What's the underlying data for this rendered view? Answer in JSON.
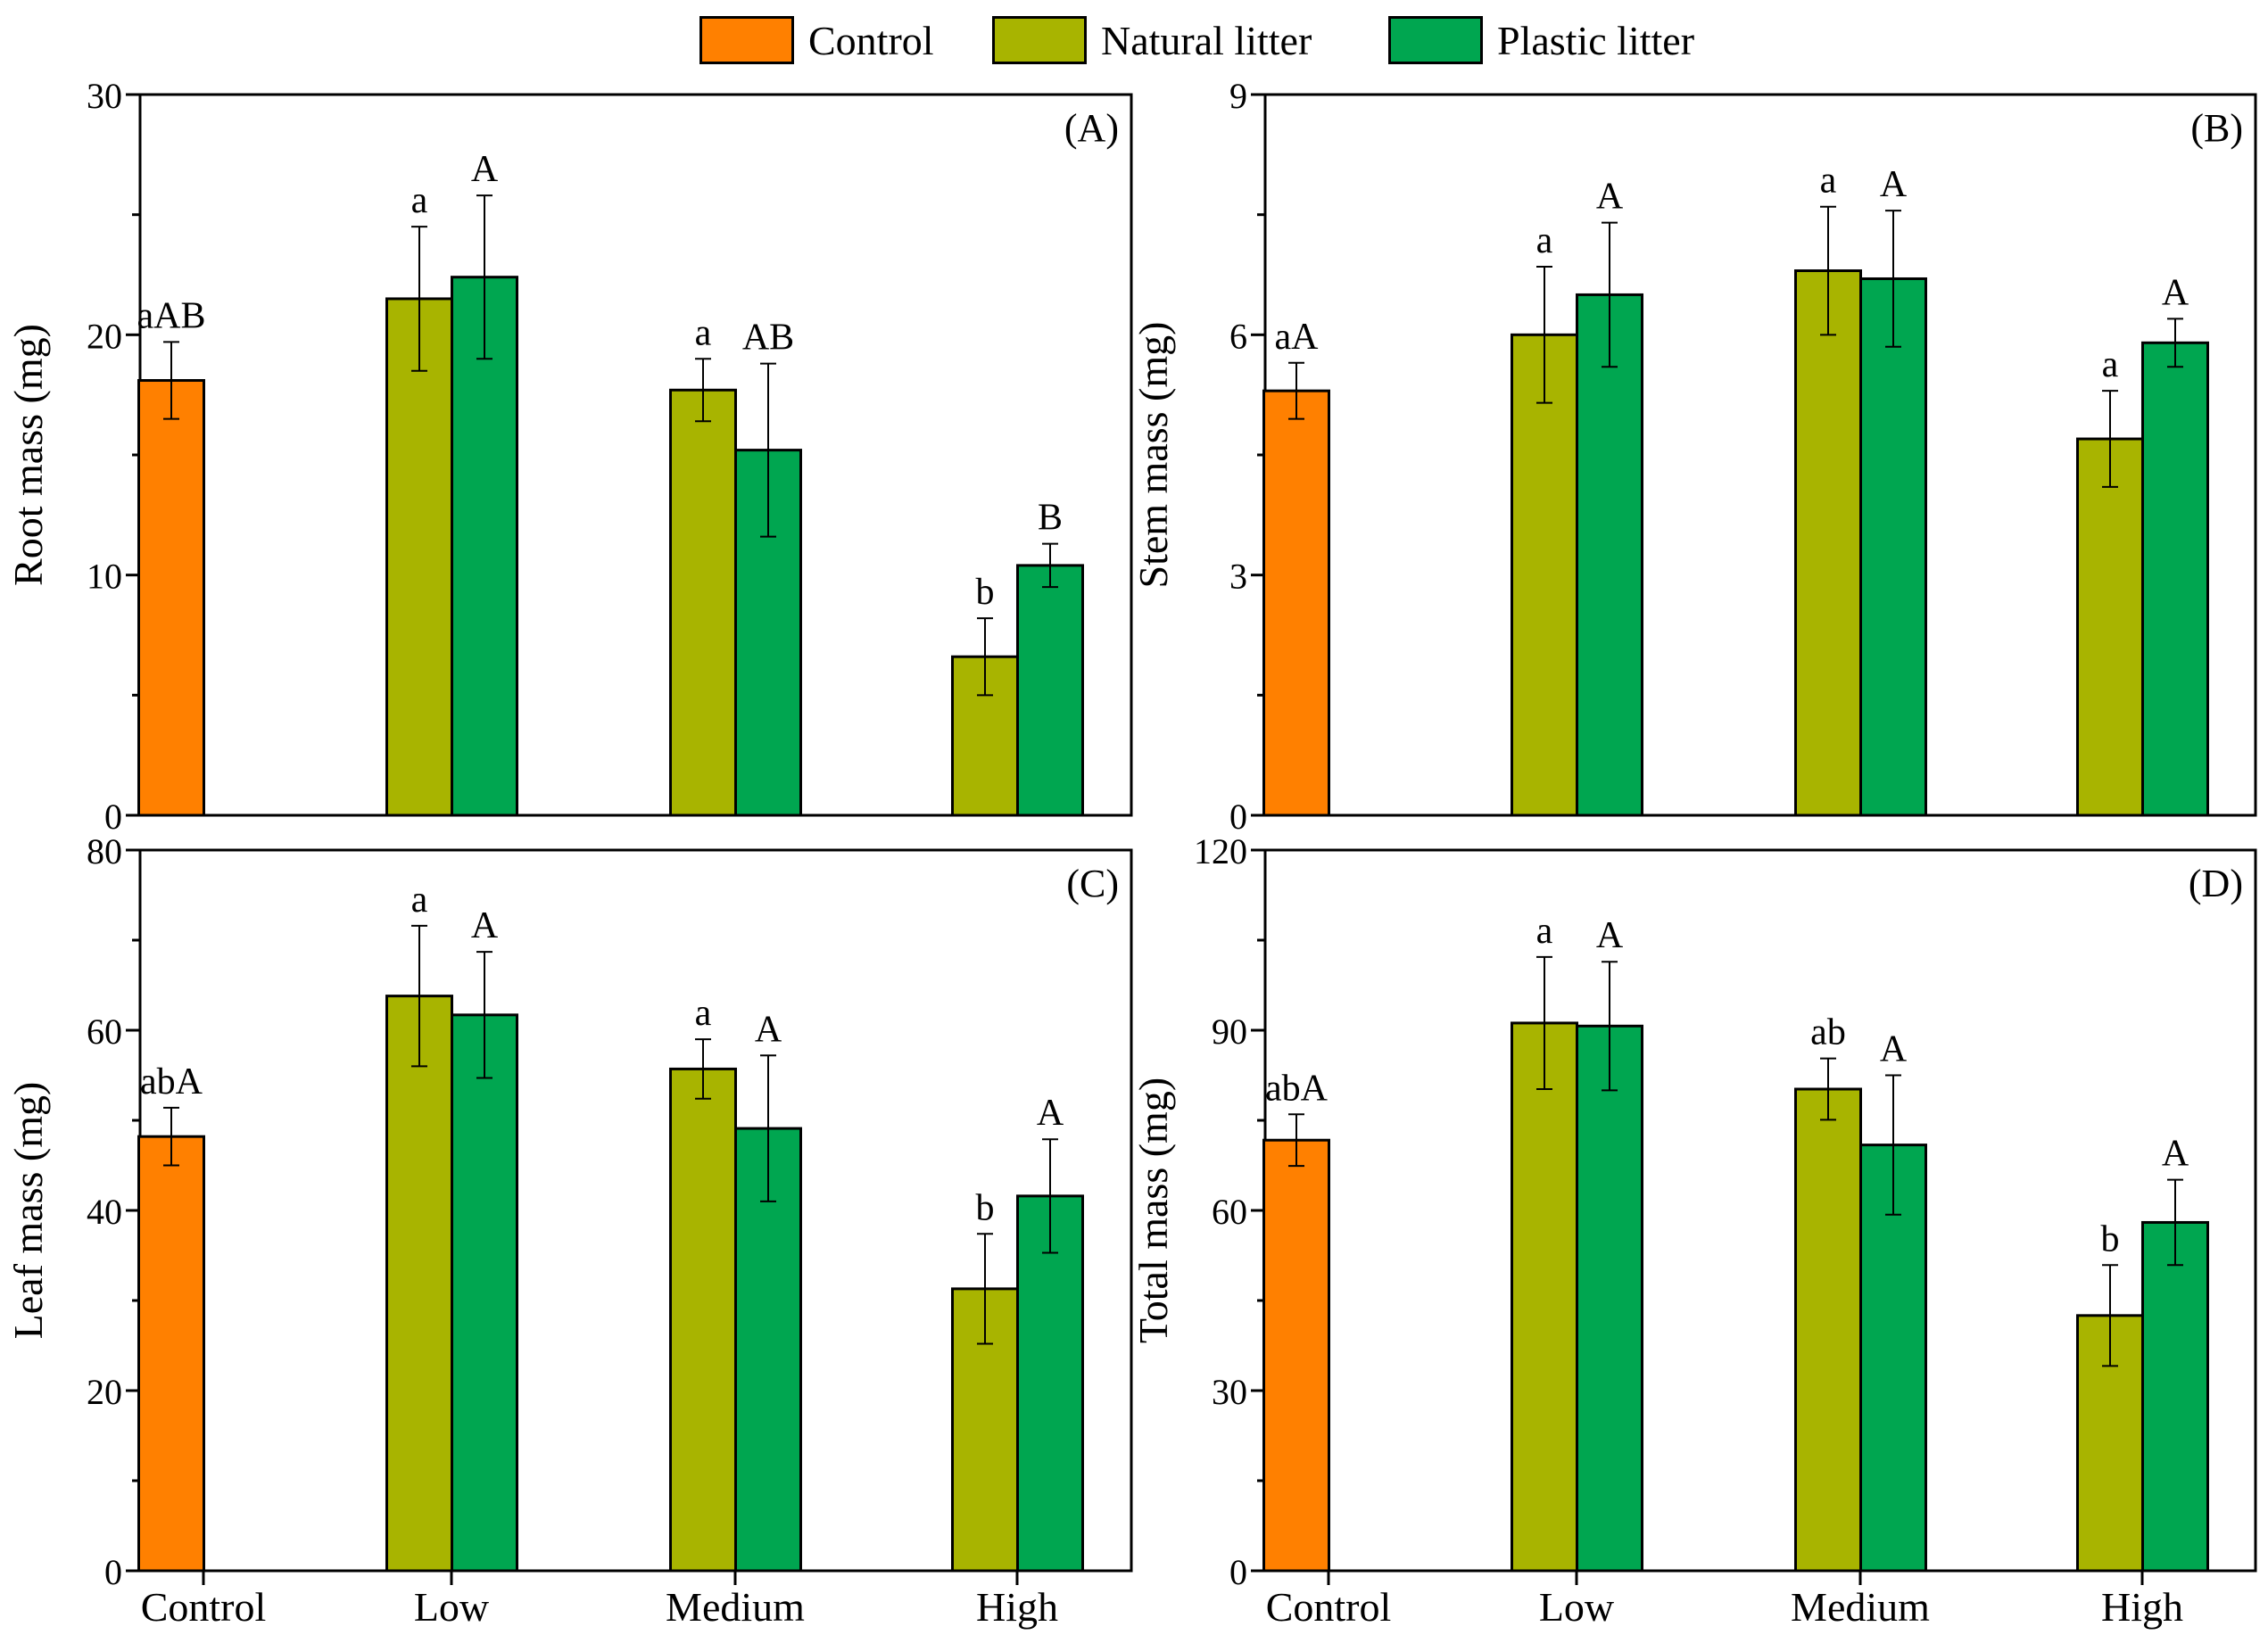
{
  "legend": {
    "items": [
      {
        "label": "Control",
        "color": "#FF8000"
      },
      {
        "label": "Natural litter",
        "color": "#A8B400"
      },
      {
        "label": "Plastic litter",
        "color": "#00A650"
      }
    ]
  },
  "chart_data": [
    {
      "type": "bar",
      "panel_label": "(A)",
      "ylabel": "Root mass (mg)",
      "ylim": [
        0,
        30
      ],
      "yticks": [
        "0",
        "10",
        "20",
        "30"
      ],
      "categories": [
        "Control",
        "Low",
        "Medium",
        "High"
      ],
      "series": [
        {
          "name": "Control",
          "values": [
            18.1,
            null,
            null,
            null
          ],
          "errors": [
            1.6,
            null,
            null,
            null
          ],
          "letters": [
            "aAB",
            "",
            "",
            ""
          ]
        },
        {
          "name": "Natural litter",
          "values": [
            null,
            21.5,
            17.7,
            6.6
          ],
          "errors": [
            null,
            3.0,
            1.3,
            1.6
          ],
          "letters": [
            "",
            "a",
            "a",
            "b"
          ]
        },
        {
          "name": "Plastic litter",
          "values": [
            null,
            22.4,
            15.2,
            10.4
          ],
          "errors": [
            null,
            3.4,
            3.6,
            0.9
          ],
          "letters": [
            "",
            "A",
            "AB",
            "B"
          ]
        }
      ]
    },
    {
      "type": "bar",
      "panel_label": "(B)",
      "ylabel": "Stem mass (mg)",
      "ylim": [
        0,
        9
      ],
      "yticks": [
        "0",
        "3",
        "6",
        "9"
      ],
      "categories": [
        "Control",
        "Low",
        "Medium",
        "High"
      ],
      "series": [
        {
          "name": "Control",
          "values": [
            5.3,
            null,
            null,
            null
          ],
          "errors": [
            0.35,
            null,
            null,
            null
          ],
          "letters": [
            "aA",
            "",
            "",
            ""
          ]
        },
        {
          "name": "Natural litter",
          "values": [
            null,
            6.0,
            6.8,
            4.7
          ],
          "errors": [
            null,
            0.85,
            0.8,
            0.6
          ],
          "letters": [
            "",
            "a",
            "a",
            "a"
          ]
        },
        {
          "name": "Plastic litter",
          "values": [
            null,
            6.5,
            6.7,
            5.9
          ],
          "errors": [
            null,
            0.9,
            0.85,
            0.3
          ],
          "letters": [
            "",
            "A",
            "A",
            "A"
          ]
        }
      ]
    },
    {
      "type": "bar",
      "panel_label": "(C)",
      "ylabel": "Leaf mass (mg)",
      "ylim": [
        0,
        80
      ],
      "yticks": [
        "0",
        "20",
        "40",
        "60",
        "80"
      ],
      "categories": [
        "Control",
        "Low",
        "Medium",
        "High"
      ],
      "series": [
        {
          "name": "Control",
          "values": [
            48.2,
            null,
            null,
            null
          ],
          "errors": [
            3.2,
            null,
            null,
            null
          ],
          "letters": [
            "abA",
            "",
            "",
            ""
          ]
        },
        {
          "name": "Natural litter",
          "values": [
            null,
            63.8,
            55.7,
            31.3
          ],
          "errors": [
            null,
            7.8,
            3.3,
            6.1
          ],
          "letters": [
            "",
            "a",
            "a",
            "b"
          ]
        },
        {
          "name": "Plastic litter",
          "values": [
            null,
            61.7,
            49.1,
            41.6
          ],
          "errors": [
            null,
            7.0,
            8.1,
            6.3
          ],
          "letters": [
            "",
            "A",
            "A",
            "A"
          ]
        }
      ]
    },
    {
      "type": "bar",
      "panel_label": "(D)",
      "ylabel": "Total mass (mg)",
      "ylim": [
        0,
        120
      ],
      "yticks": [
        "0",
        "30",
        "60",
        "90",
        "120"
      ],
      "categories": [
        "Control",
        "Low",
        "Medium",
        "High"
      ],
      "series": [
        {
          "name": "Control",
          "values": [
            71.7,
            null,
            null,
            null
          ],
          "errors": [
            4.3,
            null,
            null,
            null
          ],
          "letters": [
            "abA",
            "",
            "",
            ""
          ]
        },
        {
          "name": "Natural litter",
          "values": [
            null,
            91.2,
            80.2,
            42.5
          ],
          "errors": [
            null,
            11.0,
            5.1,
            8.4
          ],
          "letters": [
            "",
            "a",
            "ab",
            "b"
          ]
        },
        {
          "name": "Plastic litter",
          "values": [
            null,
            90.7,
            70.9,
            58.0
          ],
          "errors": [
            null,
            10.7,
            11.6,
            7.1
          ],
          "letters": [
            "",
            "A",
            "A",
            "A"
          ]
        }
      ]
    }
  ]
}
